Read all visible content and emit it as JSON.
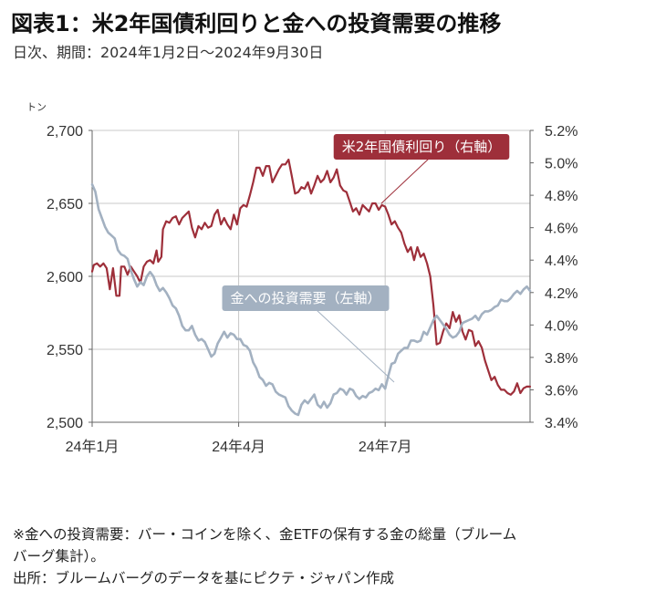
{
  "title": "図表1：米2年国債利回りと金への投資需要の推移",
  "subtitle": "日次、期間：2024年1月2日～2024年9月30日",
  "notes": [
    "※金への投資需要：バー・コインを除く、金ETFの保有する金の総量（ブルーム",
    "バーグ集計）。",
    "出所：ブルームバーグのデータを基にピクテ・ジャパン作成"
  ],
  "chart_data": {
    "type": "line",
    "x_ticks": [
      "24年1月",
      "24年4月",
      "24年7月"
    ],
    "x_tick_days": [
      0,
      91,
      182
    ],
    "x_range_days": [
      0,
      272
    ],
    "left_axis": {
      "unit": "トン",
      "range": [
        2500,
        2700
      ],
      "ticks": [
        "2,500",
        "2,550",
        "2,600",
        "2,650",
        "2,700"
      ],
      "tick_values": [
        2500,
        2550,
        2600,
        2650,
        2700
      ]
    },
    "right_axis": {
      "range": [
        3.4,
        5.2
      ],
      "ticks": [
        "3.4%",
        "3.6%",
        "3.8%",
        "4.0%",
        "4.2%",
        "4.4%",
        "4.6%",
        "4.8%",
        "5.0%",
        "5.2%"
      ],
      "tick_values": [
        3.4,
        3.6,
        3.8,
        4.0,
        4.2,
        4.4,
        4.6,
        4.8,
        5.0,
        5.2
      ]
    },
    "grid": true,
    "series": [
      {
        "name": "米2年国債利回り（右軸）",
        "axis": "right",
        "color": "#9e2f3a",
        "points": [
          [
            0,
            4.33
          ],
          [
            1,
            4.37
          ],
          [
            3,
            4.38
          ],
          [
            5,
            4.36
          ],
          [
            7,
            4.38
          ],
          [
            9,
            4.35
          ],
          [
            11,
            4.22
          ],
          [
            13,
            4.35
          ],
          [
            15,
            4.18
          ],
          [
            17,
            4.18
          ],
          [
            18,
            4.36
          ],
          [
            20,
            4.36
          ],
          [
            22,
            4.31
          ],
          [
            24,
            4.36
          ],
          [
            26,
            4.33
          ],
          [
            28,
            4.3
          ],
          [
            30,
            4.26
          ],
          [
            32,
            4.36
          ],
          [
            34,
            4.39
          ],
          [
            36,
            4.4
          ],
          [
            38,
            4.38
          ],
          [
            40,
            4.46
          ],
          [
            41,
            4.39
          ],
          [
            43,
            4.42
          ],
          [
            44,
            4.59
          ],
          [
            46,
            4.64
          ],
          [
            48,
            4.63
          ],
          [
            50,
            4.66
          ],
          [
            52,
            4.67
          ],
          [
            54,
            4.62
          ],
          [
            56,
            4.66
          ],
          [
            58,
            4.68
          ],
          [
            60,
            4.7
          ],
          [
            62,
            4.6
          ],
          [
            64,
            4.54
          ],
          [
            66,
            4.61
          ],
          [
            68,
            4.59
          ],
          [
            70,
            4.63
          ],
          [
            72,
            4.6
          ],
          [
            74,
            4.61
          ],
          [
            76,
            4.68
          ],
          [
            78,
            4.71
          ],
          [
            80,
            4.62
          ],
          [
            82,
            4.66
          ],
          [
            84,
            4.62
          ],
          [
            86,
            4.59
          ],
          [
            88,
            4.68
          ],
          [
            90,
            4.62
          ],
          [
            92,
            4.72
          ],
          [
            94,
            4.74
          ],
          [
            96,
            4.73
          ],
          [
            98,
            4.8
          ],
          [
            100,
            4.88
          ],
          [
            102,
            4.97
          ],
          [
            104,
            4.97
          ],
          [
            106,
            4.92
          ],
          [
            108,
            4.98
          ],
          [
            110,
            4.98
          ],
          [
            112,
            4.88
          ],
          [
            114,
            4.92
          ],
          [
            116,
            4.96
          ],
          [
            118,
            4.99
          ],
          [
            120,
            4.99
          ],
          [
            122,
            5.02
          ],
          [
            124,
            4.92
          ],
          [
            126,
            4.81
          ],
          [
            128,
            4.82
          ],
          [
            130,
            4.85
          ],
          [
            132,
            4.84
          ],
          [
            134,
            4.88
          ],
          [
            136,
            4.81
          ],
          [
            138,
            4.86
          ],
          [
            140,
            4.92
          ],
          [
            142,
            4.88
          ],
          [
            144,
            4.9
          ],
          [
            146,
            4.95
          ],
          [
            148,
            4.88
          ],
          [
            150,
            4.91
          ],
          [
            152,
            4.96
          ],
          [
            154,
            4.86
          ],
          [
            156,
            4.83
          ],
          [
            158,
            4.82
          ],
          [
            160,
            4.76
          ],
          [
            162,
            4.7
          ],
          [
            164,
            4.72
          ],
          [
            166,
            4.68
          ],
          [
            168,
            4.74
          ],
          [
            170,
            4.72
          ],
          [
            172,
            4.7
          ],
          [
            174,
            4.75
          ],
          [
            176,
            4.75
          ],
          [
            178,
            4.71
          ],
          [
            180,
            4.74
          ],
          [
            182,
            4.73
          ],
          [
            184,
            4.68
          ],
          [
            186,
            4.62
          ],
          [
            188,
            4.64
          ],
          [
            190,
            4.6
          ],
          [
            192,
            4.57
          ],
          [
            194,
            4.5
          ],
          [
            196,
            4.45
          ],
          [
            198,
            4.48
          ],
          [
            200,
            4.4
          ],
          [
            202,
            4.48
          ],
          [
            204,
            4.42
          ],
          [
            206,
            4.44
          ],
          [
            208,
            4.38
          ],
          [
            210,
            4.3
          ],
          [
            212,
            4.12
          ],
          [
            214,
            3.88
          ],
          [
            216,
            3.89
          ],
          [
            218,
            3.96
          ],
          [
            220,
            4.01
          ],
          [
            222,
            3.98
          ],
          [
            224,
            4.08
          ],
          [
            226,
            4.02
          ],
          [
            228,
            4.06
          ],
          [
            230,
            3.96
          ],
          [
            232,
            3.91
          ],
          [
            234,
            3.97
          ],
          [
            236,
            3.96
          ],
          [
            238,
            3.87
          ],
          [
            240,
            3.9
          ],
          [
            242,
            3.86
          ],
          [
            244,
            3.78
          ],
          [
            246,
            3.72
          ],
          [
            248,
            3.66
          ],
          [
            250,
            3.68
          ],
          [
            252,
            3.63
          ],
          [
            254,
            3.6
          ],
          [
            256,
            3.6
          ],
          [
            258,
            3.58
          ],
          [
            260,
            3.57
          ],
          [
            262,
            3.59
          ],
          [
            264,
            3.64
          ],
          [
            266,
            3.58
          ],
          [
            268,
            3.61
          ],
          [
            270,
            3.62
          ],
          [
            272,
            3.62
          ]
        ]
      },
      {
        "name": "金への投資需要（左軸）",
        "axis": "left",
        "color": "#a3b1c1",
        "points": [
          [
            0,
            2663
          ],
          [
            2,
            2658
          ],
          [
            4,
            2646
          ],
          [
            6,
            2640
          ],
          [
            8,
            2634
          ],
          [
            10,
            2630
          ],
          [
            12,
            2628
          ],
          [
            14,
            2626
          ],
          [
            16,
            2618
          ],
          [
            18,
            2615
          ],
          [
            20,
            2614
          ],
          [
            22,
            2612
          ],
          [
            24,
            2604
          ],
          [
            26,
            2598
          ],
          [
            28,
            2593
          ],
          [
            30,
            2596
          ],
          [
            32,
            2594
          ],
          [
            34,
            2600
          ],
          [
            36,
            2603
          ],
          [
            38,
            2600
          ],
          [
            40,
            2594
          ],
          [
            42,
            2590
          ],
          [
            44,
            2592
          ],
          [
            46,
            2589
          ],
          [
            48,
            2585
          ],
          [
            50,
            2580
          ],
          [
            52,
            2578
          ],
          [
            54,
            2573
          ],
          [
            56,
            2566
          ],
          [
            58,
            2563
          ],
          [
            60,
            2563
          ],
          [
            62,
            2566
          ],
          [
            64,
            2560
          ],
          [
            66,
            2556
          ],
          [
            68,
            2557
          ],
          [
            70,
            2555
          ],
          [
            72,
            2550
          ],
          [
            74,
            2545
          ],
          [
            76,
            2547
          ],
          [
            78,
            2554
          ],
          [
            80,
            2558
          ],
          [
            82,
            2562
          ],
          [
            84,
            2558
          ],
          [
            86,
            2561
          ],
          [
            88,
            2560
          ],
          [
            90,
            2557
          ],
          [
            92,
            2557
          ],
          [
            94,
            2553
          ],
          [
            96,
            2552
          ],
          [
            98,
            2549
          ],
          [
            100,
            2541
          ],
          [
            102,
            2537
          ],
          [
            104,
            2531
          ],
          [
            106,
            2529
          ],
          [
            108,
            2525
          ],
          [
            110,
            2527
          ],
          [
            112,
            2526
          ],
          [
            114,
            2521
          ],
          [
            116,
            2519
          ],
          [
            118,
            2518
          ],
          [
            120,
            2517
          ],
          [
            122,
            2511
          ],
          [
            124,
            2508
          ],
          [
            126,
            2506
          ],
          [
            128,
            2505
          ],
          [
            130,
            2512
          ],
          [
            132,
            2515
          ],
          [
            134,
            2513
          ],
          [
            136,
            2516
          ],
          [
            138,
            2519
          ],
          [
            140,
            2512
          ],
          [
            142,
            2510
          ],
          [
            144,
            2514
          ],
          [
            146,
            2510
          ],
          [
            148,
            2513
          ],
          [
            150,
            2519
          ],
          [
            152,
            2520
          ],
          [
            154,
            2523
          ],
          [
            156,
            2522
          ],
          [
            158,
            2519
          ],
          [
            160,
            2523
          ],
          [
            162,
            2522
          ],
          [
            164,
            2518
          ],
          [
            166,
            2516
          ],
          [
            168,
            2518
          ],
          [
            170,
            2517
          ],
          [
            172,
            2520
          ],
          [
            174,
            2521
          ],
          [
            176,
            2523
          ],
          [
            178,
            2522
          ],
          [
            180,
            2526
          ],
          [
            182,
            2523
          ],
          [
            184,
            2532
          ],
          [
            186,
            2540
          ],
          [
            188,
            2541
          ],
          [
            190,
            2547
          ],
          [
            192,
            2549
          ],
          [
            194,
            2551
          ],
          [
            196,
            2551
          ],
          [
            198,
            2556
          ],
          [
            200,
            2556
          ],
          [
            202,
            2555
          ],
          [
            204,
            2556
          ],
          [
            206,
            2562
          ],
          [
            208,
            2560
          ],
          [
            210,
            2565
          ],
          [
            212,
            2570
          ],
          [
            214,
            2573
          ],
          [
            216,
            2570
          ],
          [
            218,
            2567
          ],
          [
            220,
            2564
          ],
          [
            222,
            2560
          ],
          [
            224,
            2558
          ],
          [
            226,
            2559
          ],
          [
            228,
            2562
          ],
          [
            230,
            2568
          ],
          [
            232,
            2569
          ],
          [
            234,
            2570
          ],
          [
            236,
            2571
          ],
          [
            238,
            2573
          ],
          [
            240,
            2570
          ],
          [
            242,
            2574
          ],
          [
            244,
            2576
          ],
          [
            246,
            2576
          ],
          [
            248,
            2577
          ],
          [
            250,
            2579
          ],
          [
            252,
            2580
          ],
          [
            254,
            2584
          ],
          [
            256,
            2583
          ],
          [
            258,
            2583
          ],
          [
            260,
            2585
          ],
          [
            262,
            2588
          ],
          [
            264,
            2590
          ],
          [
            266,
            2588
          ],
          [
            268,
            2591
          ],
          [
            270,
            2593
          ],
          [
            272,
            2590
          ]
        ]
      }
    ],
    "annotations": [
      "米2年国債利回り（右軸）",
      "金への投資需要（左軸）"
    ]
  }
}
